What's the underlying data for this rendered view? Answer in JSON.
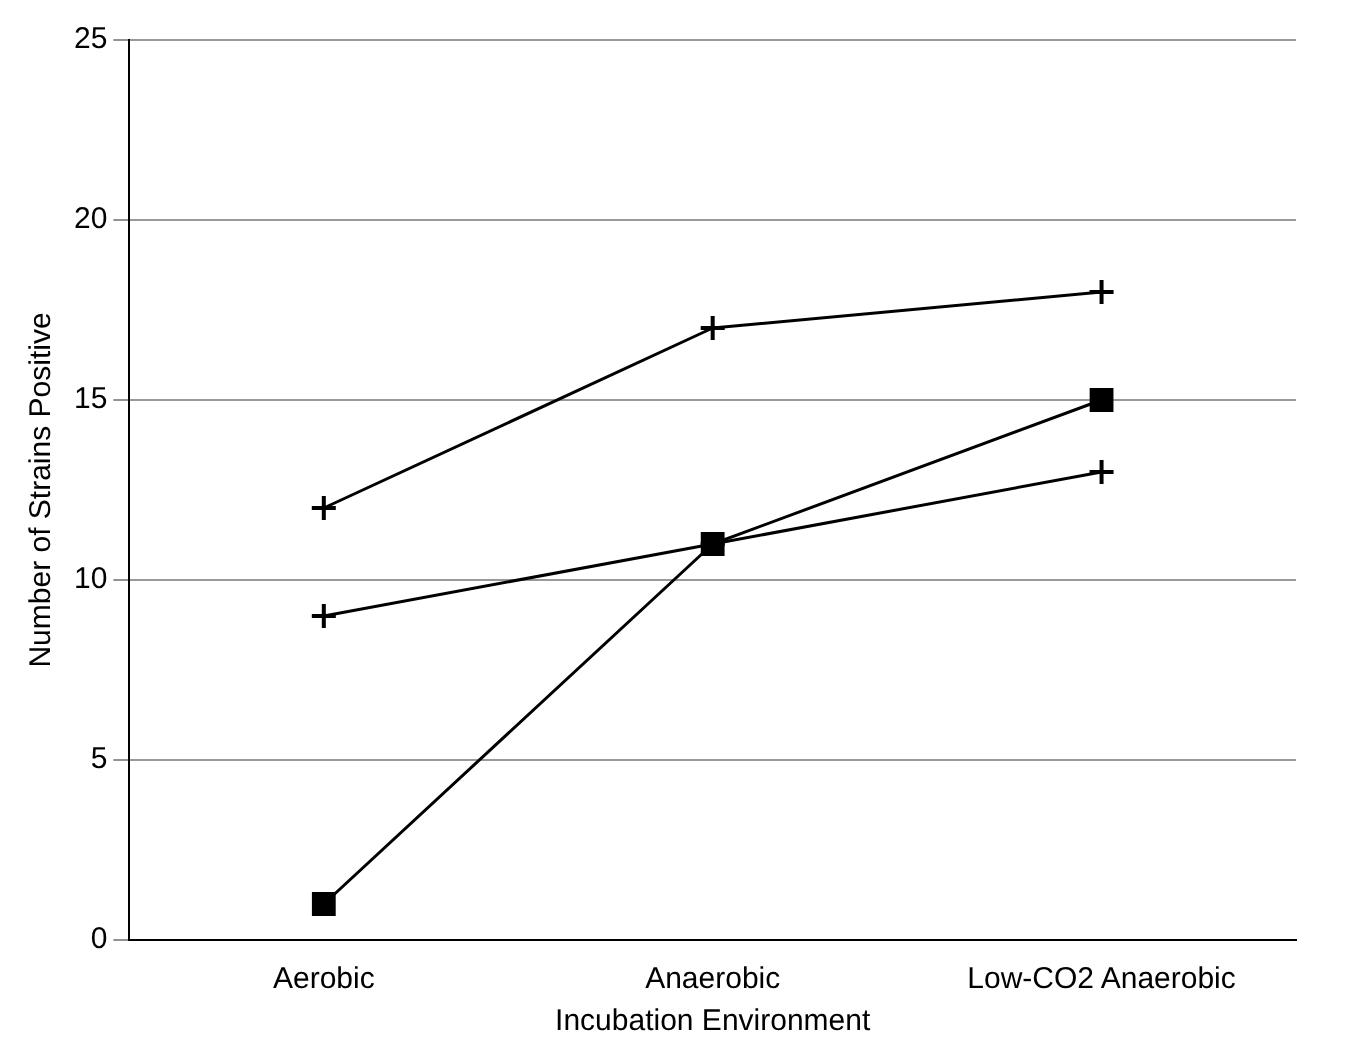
{
  "chart_data": {
    "type": "line",
    "xlabel": "Incubation Environment",
    "ylabel": "Number of Strains Positive",
    "categories": [
      "Aerobic",
      "Anaerobic",
      "Low-CO2 Anaerobic"
    ],
    "series": [
      {
        "color": "#000000",
        "marker": "cross",
        "values": [
          12,
          17,
          18
        ]
      },
      {
        "color": "#000000",
        "marker": "cross",
        "values": [
          9,
          11,
          13
        ]
      },
      {
        "color": "#000000",
        "marker": "square",
        "values": [
          1,
          11,
          15
        ]
      }
    ],
    "ylim": [
      0,
      25
    ],
    "yticks": [
      0,
      5,
      10,
      15,
      20,
      25
    ],
    "grid": "y",
    "legend": false,
    "line_style": "solid"
  }
}
